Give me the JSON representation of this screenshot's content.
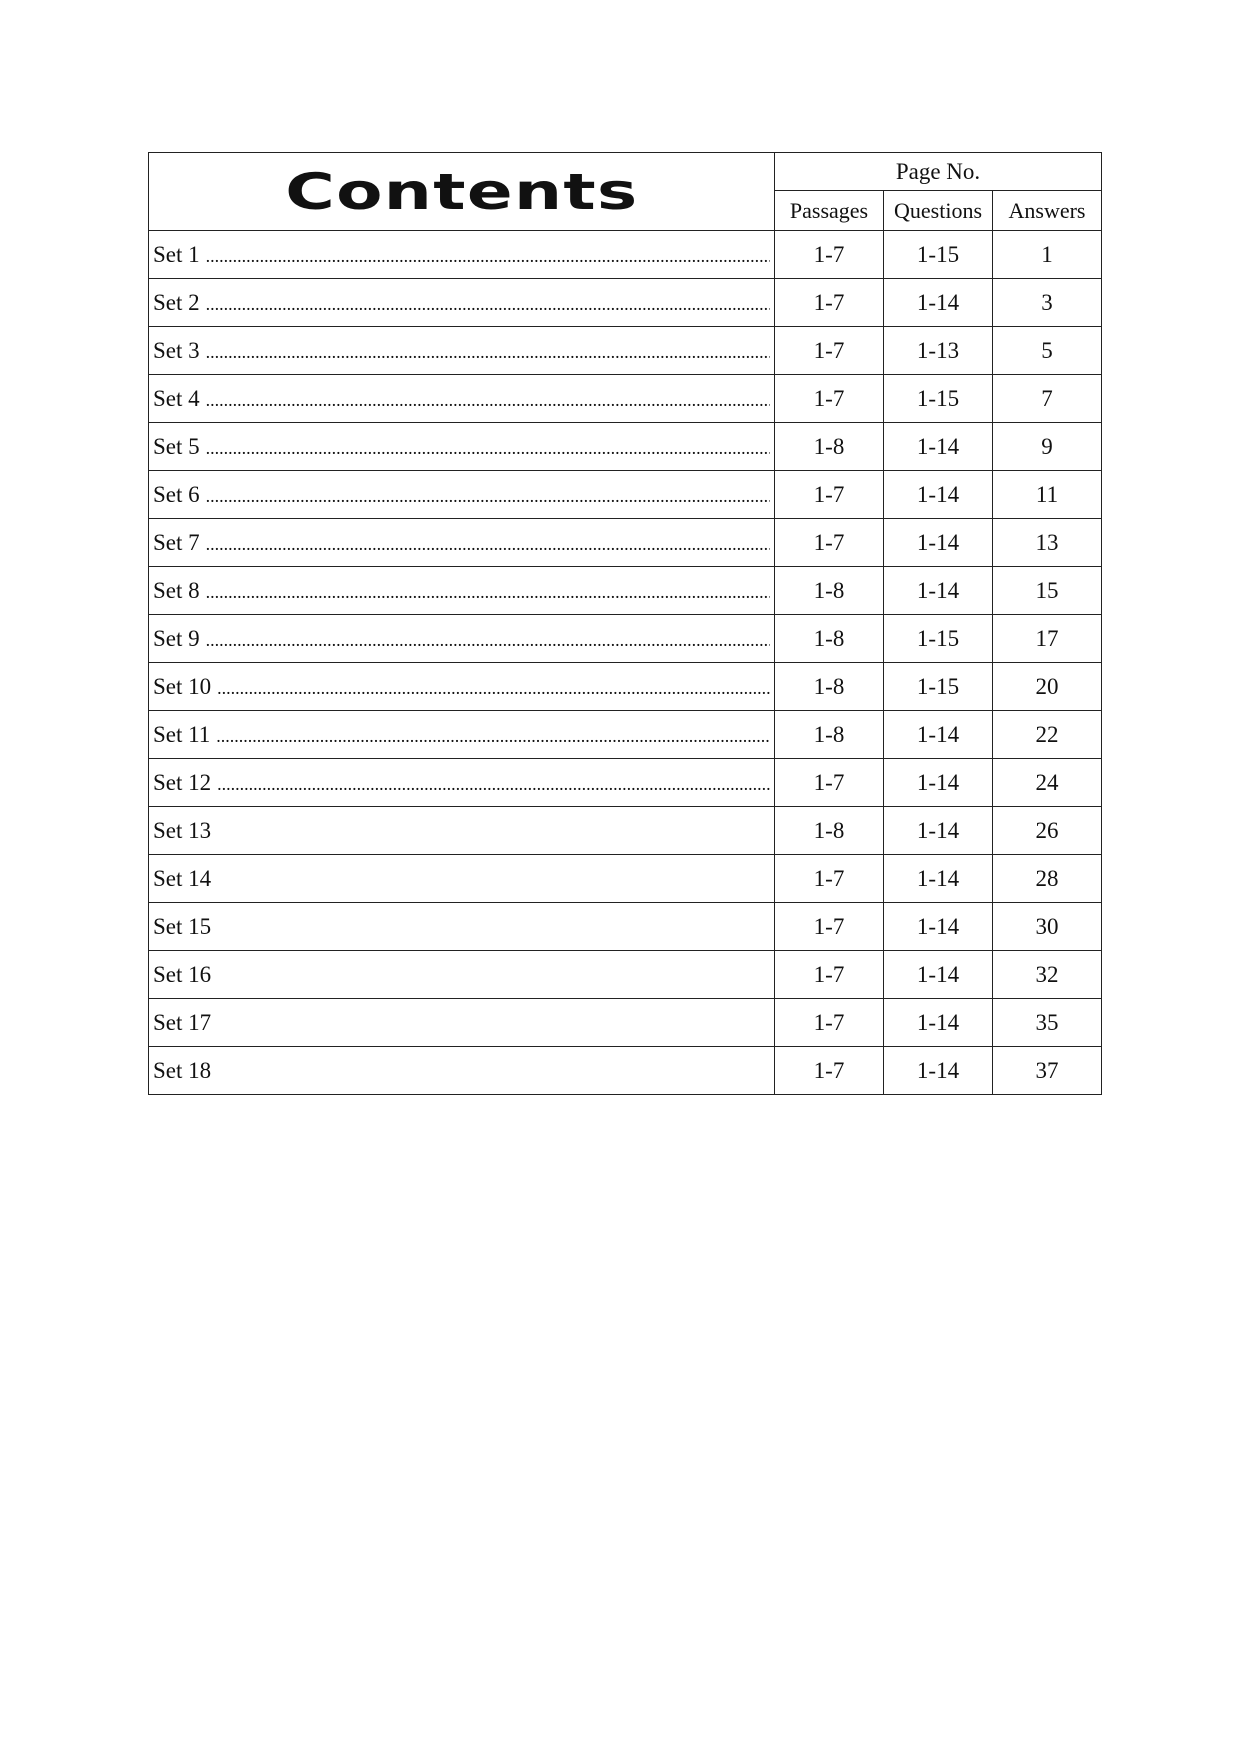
{
  "title": "Contents",
  "page_no_label": "Page No.",
  "columns": [
    "Passages",
    "Questions",
    "Answers"
  ],
  "rows": [
    {
      "set": "Set 1",
      "dots": true,
      "passages": "1-7",
      "questions": "1-15",
      "answers": "1"
    },
    {
      "set": "Set 2",
      "dots": true,
      "passages": "1-7",
      "questions": "1-14",
      "answers": "3"
    },
    {
      "set": "Set 3",
      "dots": true,
      "passages": "1-7",
      "questions": "1-13",
      "answers": "5"
    },
    {
      "set": "Set 4",
      "dots": true,
      "passages": "1-7",
      "questions": "1-15",
      "answers": "7"
    },
    {
      "set": "Set 5",
      "dots": true,
      "passages": "1-8",
      "questions": "1-14",
      "answers": "9"
    },
    {
      "set": "Set 6",
      "dots": true,
      "passages": "1-7",
      "questions": "1-14",
      "answers": "11"
    },
    {
      "set": "Set 7",
      "dots": true,
      "passages": "1-7",
      "questions": "1-14",
      "answers": "13"
    },
    {
      "set": "Set 8",
      "dots": true,
      "passages": "1-8",
      "questions": "1-14",
      "answers": "15"
    },
    {
      "set": "Set 9",
      "dots": true,
      "passages": "1-8",
      "questions": "1-15",
      "answers": "17"
    },
    {
      "set": "Set 10",
      "dots": true,
      "passages": "1-8",
      "questions": "1-15",
      "answers": "20"
    },
    {
      "set": "Set 11",
      "dots": true,
      "passages": "1-8",
      "questions": "1-14",
      "answers": "22"
    },
    {
      "set": "Set 12",
      "dots": true,
      "passages": "1-7",
      "questions": "1-14",
      "answers": "24"
    },
    {
      "set": "Set 13",
      "dots": false,
      "passages": "1-8",
      "questions": "1-14",
      "answers": "26"
    },
    {
      "set": "Set 14",
      "dots": false,
      "passages": "1-7",
      "questions": "1-14",
      "answers": "28"
    },
    {
      "set": "Set 15",
      "dots": false,
      "passages": "1-7",
      "questions": "1-14",
      "answers": "30"
    },
    {
      "set": "Set 16",
      "dots": false,
      "passages": "1-7",
      "questions": "1-14",
      "answers": "32"
    },
    {
      "set": "Set 17",
      "dots": false,
      "passages": "1-7",
      "questions": "1-14",
      "answers": "35"
    },
    {
      "set": "Set 18",
      "dots": false,
      "passages": "1-7",
      "questions": "1-14",
      "answers": "37"
    }
  ]
}
